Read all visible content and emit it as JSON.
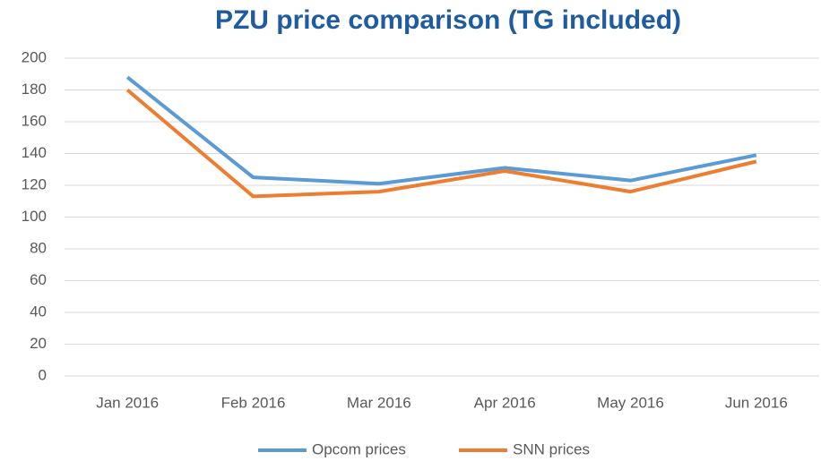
{
  "chart_data": {
    "type": "line",
    "title": "PZU price comparison (TG included)",
    "categories": [
      "Jan 2016",
      "Feb 2016",
      "Mar 2016",
      "Apr 2016",
      "May 2016",
      "Jun 2016"
    ],
    "series": [
      {
        "name": "Opcom prices",
        "color": "#5b9bd5",
        "values": [
          188,
          125,
          121,
          131,
          123,
          139
        ]
      },
      {
        "name": "SNN prices",
        "color": "#ed7d31",
        "values": [
          180,
          113,
          116,
          129,
          116,
          135
        ]
      }
    ],
    "ylim": [
      0,
      200
    ],
    "yticks": [
      0,
      20,
      40,
      60,
      80,
      100,
      120,
      140,
      160,
      180,
      200
    ],
    "grid": true,
    "legend": "bottom"
  }
}
